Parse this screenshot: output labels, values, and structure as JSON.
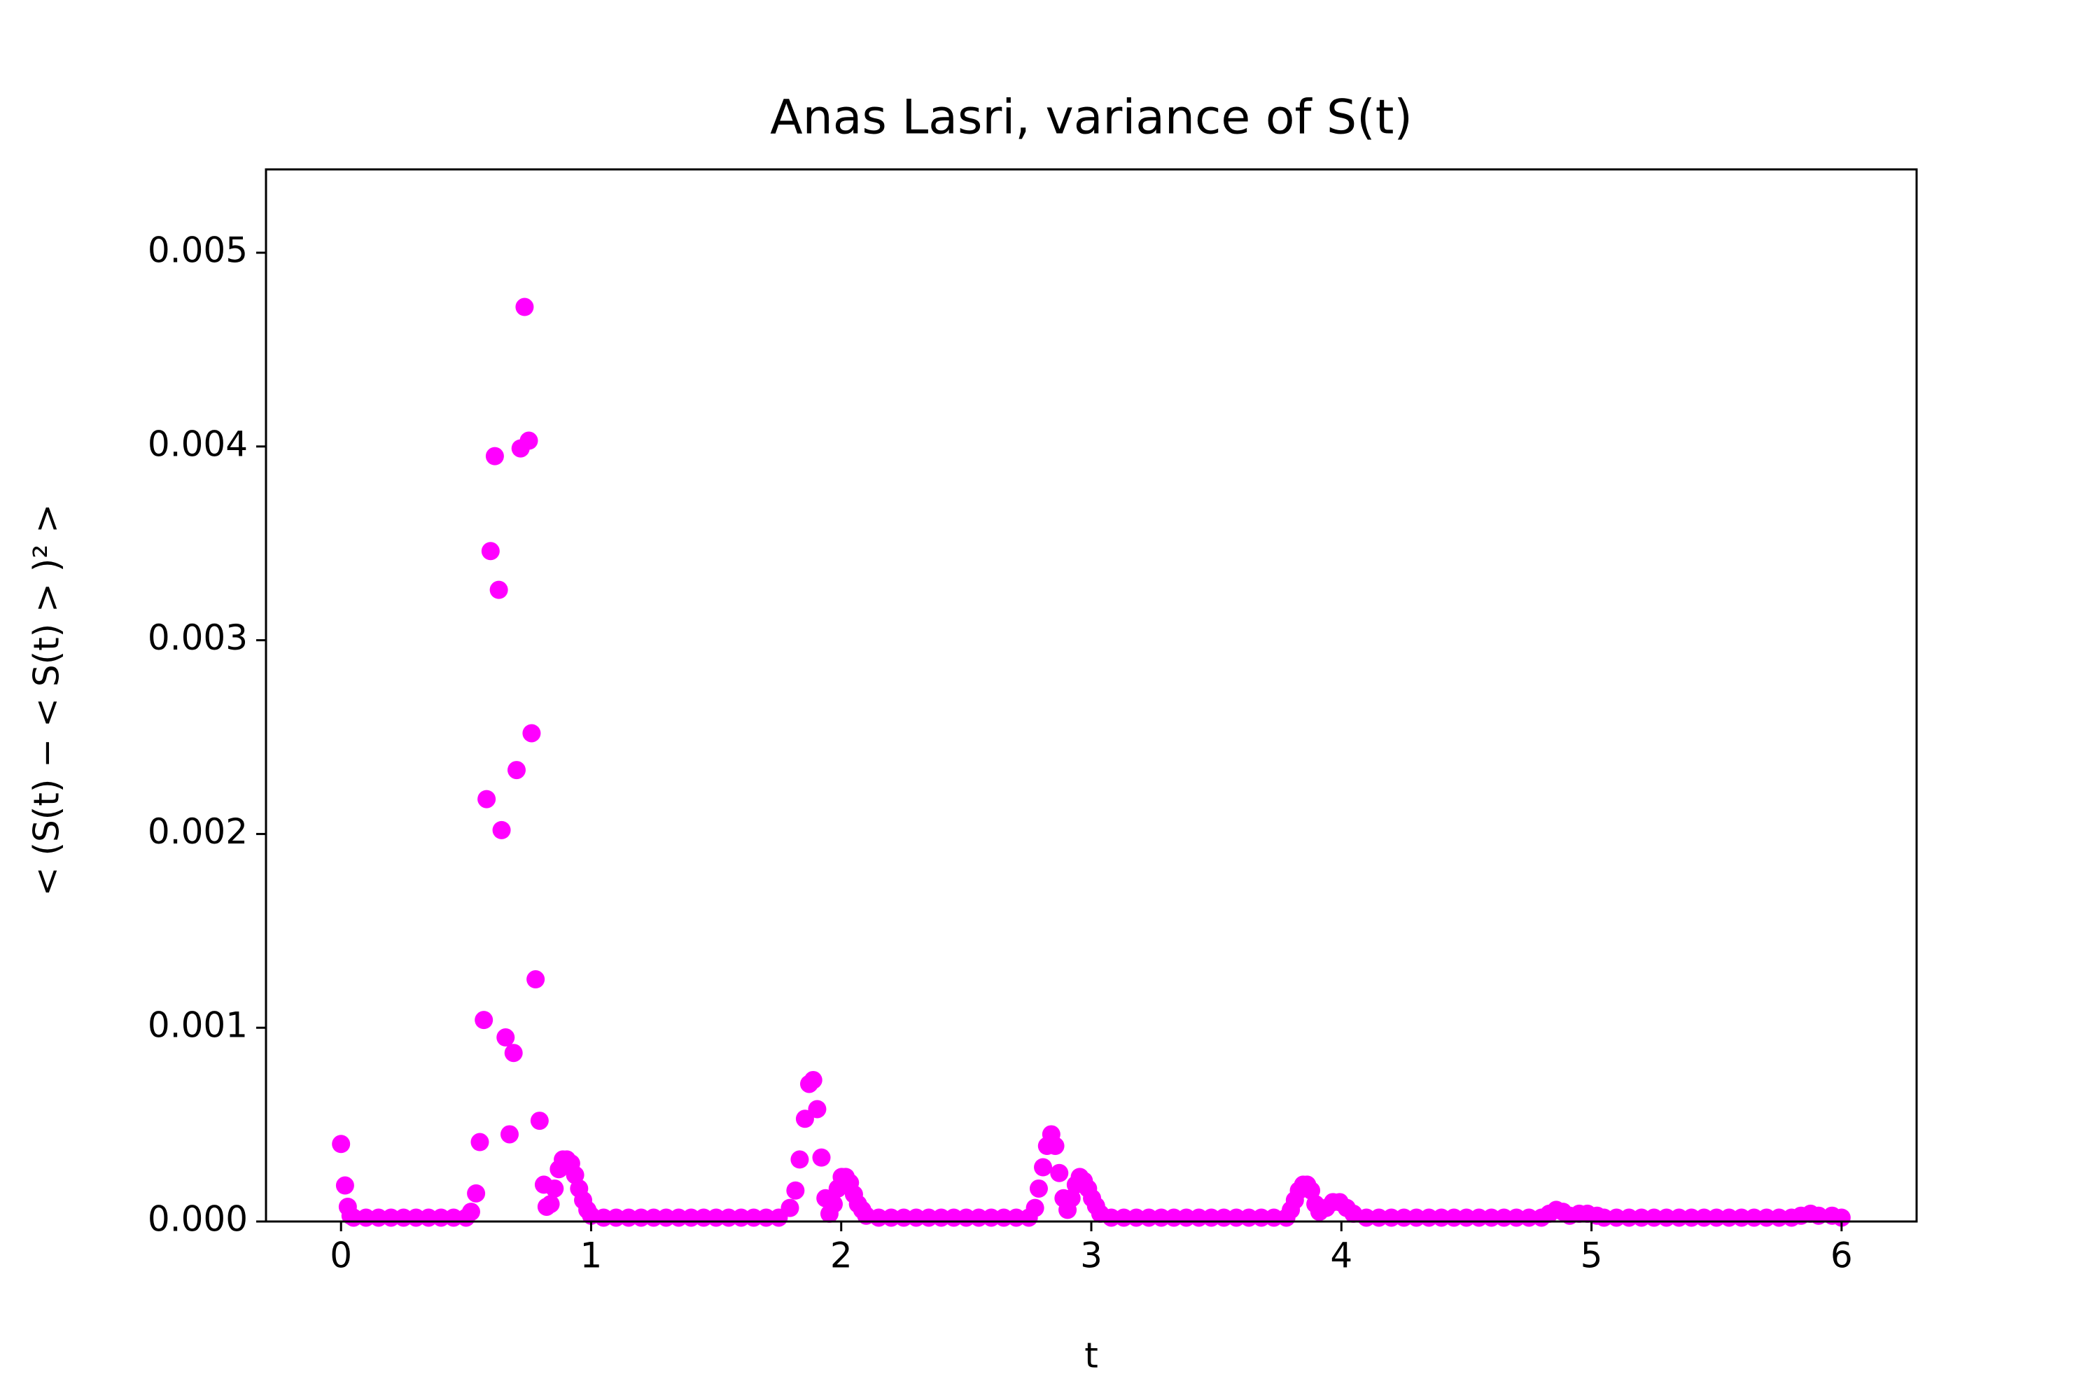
{
  "chart_data": {
    "type": "scatter",
    "title": "Anas Lasri, variance of S(t)",
    "x_label": "t",
    "y_label": "< (S(t) − < S(t) > )² >",
    "color": "#ff00ff",
    "xlim": [
      -0.3,
      6.3
    ],
    "ylim": [
      0,
      0.00543
    ],
    "xticks": [
      0,
      1,
      2,
      3,
      4,
      5,
      6
    ],
    "yticks": [
      {
        "value": 0,
        "label": "0.000"
      },
      {
        "value": 0.001,
        "label": "0.001"
      },
      {
        "value": 0.002,
        "label": "0.002"
      },
      {
        "value": 0.003,
        "label": "0.003"
      },
      {
        "value": 0.004,
        "label": "0.004"
      },
      {
        "value": 0.005,
        "label": "0.005"
      }
    ],
    "x": [
      0,
      0.016,
      0.027,
      0.038,
      0.05,
      0.1,
      0.15,
      0.2,
      0.25,
      0.3,
      0.35,
      0.4,
      0.45,
      0.5,
      0.52,
      0.54,
      0.555,
      0.571,
      0.582,
      0.598,
      0.615,
      0.631,
      0.642,
      0.658,
      0.674,
      0.69,
      0.702,
      0.718,
      0.734,
      0.751,
      0.762,
      0.778,
      0.794,
      0.811,
      0.822,
      0.838,
      0.854,
      0.871,
      0.887,
      0.903,
      0.92,
      0.936,
      0.952,
      0.968,
      0.985,
      1.0,
      1.05,
      1.1,
      1.15,
      1.2,
      1.25,
      1.3,
      1.35,
      1.4,
      1.45,
      1.5,
      1.55,
      1.6,
      1.65,
      1.7,
      1.75,
      1.795,
      1.817,
      1.834,
      1.855,
      1.872,
      1.888,
      1.904,
      1.921,
      1.937,
      1.953,
      1.97,
      1.986,
      2.002,
      2.018,
      2.035,
      2.051,
      2.067,
      2.084,
      2.1,
      2.15,
      2.2,
      2.25,
      2.3,
      2.35,
      2.4,
      2.45,
      2.5,
      2.55,
      2.6,
      2.65,
      2.7,
      2.75,
      2.775,
      2.79,
      2.807,
      2.823,
      2.84,
      2.856,
      2.872,
      2.889,
      2.905,
      2.921,
      2.938,
      2.954,
      2.97,
      2.987,
      3.003,
      3.019,
      3.036,
      3.08,
      3.13,
      3.18,
      3.23,
      3.28,
      3.33,
      3.38,
      3.43,
      3.48,
      3.53,
      3.58,
      3.63,
      3.68,
      3.73,
      3.78,
      3.798,
      3.814,
      3.83,
      3.847,
      3.863,
      3.879,
      3.896,
      3.912,
      3.939,
      3.966,
      3.993,
      4.021,
      4.048,
      4.1,
      4.15,
      4.2,
      4.25,
      4.3,
      4.35,
      4.4,
      4.45,
      4.5,
      4.55,
      4.6,
      4.65,
      4.7,
      4.75,
      4.8,
      4.831,
      4.859,
      4.886,
      4.913,
      4.951,
      4.984,
      5.022,
      5.05,
      5.1,
      5.15,
      5.2,
      5.25,
      5.3,
      5.35,
      5.4,
      5.45,
      5.5,
      5.55,
      5.6,
      5.65,
      5.7,
      5.75,
      5.8,
      5.838,
      5.876,
      5.908,
      5.962,
      6.0
    ],
    "values": [
      0.0004,
      0.000186,
      7.6e-05,
      3e-05,
      2e-05,
      2e-05,
      2e-05,
      2e-05,
      2e-05,
      2e-05,
      2e-05,
      2e-05,
      2e-05,
      2e-05,
      5e-05,
      0.000145,
      0.00041,
      0.00104,
      0.00218,
      0.00346,
      0.00395,
      0.00326,
      0.00202,
      0.00095,
      0.00045,
      0.00087,
      0.00233,
      0.00399,
      0.00472,
      0.00403,
      0.00252,
      0.00125,
      0.00052,
      0.00019,
      7.6e-05,
      9e-05,
      0.00017,
      0.00027,
      0.00032,
      0.00032,
      0.0003,
      0.00024,
      0.00017,
      0.00011,
      6e-05,
      3e-05,
      2e-05,
      2e-05,
      2e-05,
      2e-05,
      2e-05,
      2e-05,
      2e-05,
      2e-05,
      2e-05,
      2e-05,
      2e-05,
      2e-05,
      2e-05,
      2e-05,
      2e-05,
      7e-05,
      0.00016,
      0.00032,
      0.00053,
      0.00071,
      0.00073,
      0.00058,
      0.00033,
      0.00012,
      4e-05,
      9e-05,
      0.00017,
      0.00023,
      0.00023,
      0.0002,
      0.00014,
      9e-05,
      6e-05,
      3e-05,
      2e-05,
      2e-05,
      2e-05,
      2e-05,
      2e-05,
      2e-05,
      2e-05,
      2e-05,
      2e-05,
      2e-05,
      2e-05,
      2e-05,
      2e-05,
      7e-05,
      0.00017,
      0.00028,
      0.00039,
      0.00045,
      0.00039,
      0.00025,
      0.00012,
      6e-05,
      0.00012,
      0.00019,
      0.00023,
      0.00021,
      0.00017,
      0.00012,
      8e-05,
      4e-05,
      2e-05,
      2e-05,
      2e-05,
      2e-05,
      2e-05,
      2e-05,
      2e-05,
      2e-05,
      2e-05,
      2e-05,
      2e-05,
      2e-05,
      2e-05,
      2e-05,
      2e-05,
      6e-05,
      0.00011,
      0.00016,
      0.00019,
      0.00019,
      0.00016,
      9e-05,
      5e-05,
      7e-05,
      0.0001,
      0.0001,
      7e-05,
      4e-05,
      2e-05,
      2e-05,
      2e-05,
      2e-05,
      2e-05,
      2e-05,
      2e-05,
      2e-05,
      2e-05,
      2e-05,
      2e-05,
      2e-05,
      2e-05,
      2e-05,
      2e-05,
      4e-05,
      6e-05,
      5e-05,
      3e-05,
      4e-05,
      4e-05,
      3e-05,
      2e-05,
      2e-05,
      2e-05,
      2e-05,
      2e-05,
      2e-05,
      2e-05,
      2e-05,
      2e-05,
      2e-05,
      2e-05,
      2e-05,
      2e-05,
      2e-05,
      2e-05,
      2e-05,
      3e-05,
      4e-05,
      3e-05,
      3e-05,
      2e-05
    ]
  }
}
